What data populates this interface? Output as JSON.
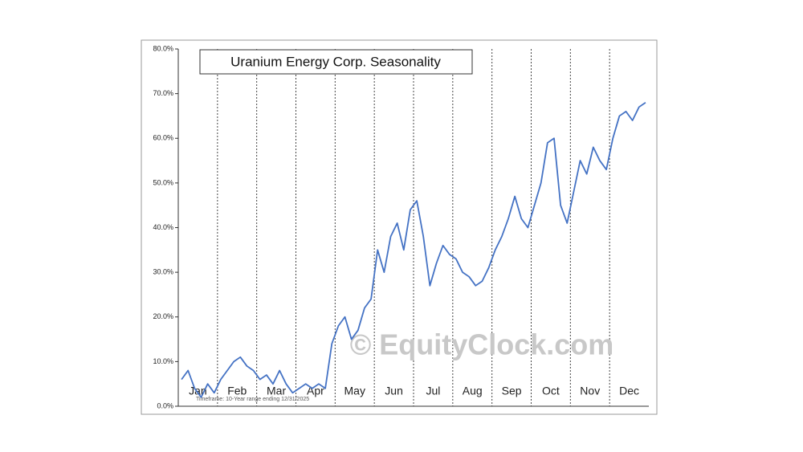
{
  "chart_data": {
    "type": "line",
    "title": "Uranium Energy Corp. Seasonality",
    "footnote": "Timeframe: 10-Year range ending 12/31/2025",
    "watermark": "© EquityClock.com",
    "categories": [
      null,
      null,
      "Jan",
      null,
      null,
      null,
      null,
      null,
      "Feb",
      null,
      null,
      null,
      null,
      null,
      "Mar",
      null,
      null,
      null,
      null,
      null,
      "Apr",
      null,
      null,
      null,
      null,
      null,
      "May",
      null,
      null,
      null,
      null,
      null,
      "Jun",
      null,
      null,
      null,
      null,
      null,
      "Jul",
      null,
      null,
      null,
      null,
      null,
      "Aug",
      null,
      null,
      null,
      null,
      null,
      "Sep",
      null,
      null,
      null,
      null,
      null,
      "Oct",
      null,
      null,
      null,
      null,
      null,
      "Nov",
      null,
      null,
      null,
      null,
      null,
      "Dec",
      null,
      null,
      null
    ],
    "series": [
      {
        "name": "Uranium Energy Corp.",
        "color": "#4472c4",
        "values": [
          6,
          8,
          4,
          2,
          5,
          3,
          6,
          8,
          10,
          11,
          9,
          8,
          6,
          7,
          5,
          8,
          5,
          3,
          4,
          5,
          4,
          5,
          4,
          14,
          18,
          20,
          15,
          17,
          22,
          24,
          35,
          30,
          38,
          41,
          35,
          44,
          46,
          38,
          27,
          32,
          36,
          34,
          33,
          30,
          29,
          27,
          28,
          31,
          35,
          38,
          42,
          47,
          42,
          40,
          45,
          50,
          59,
          60,
          45,
          41,
          48,
          55,
          52,
          58,
          55,
          53,
          60,
          65,
          66,
          64,
          67,
          68
        ]
      }
    ],
    "ylim": [
      0,
      80
    ],
    "yticks": [
      {
        "value": 0,
        "label": "0.0%"
      },
      {
        "value": 10,
        "label": "10.0%"
      },
      {
        "value": 20,
        "label": "20.0%"
      },
      {
        "value": 30,
        "label": "30.0%"
      },
      {
        "value": 40,
        "label": "40.0%"
      },
      {
        "value": 50,
        "label": "50.0%"
      },
      {
        "value": 60,
        "label": "60.0%"
      },
      {
        "value": 70,
        "label": "70.0%"
      },
      {
        "value": 80,
        "label": "80.0%"
      }
    ],
    "grid": true
  }
}
